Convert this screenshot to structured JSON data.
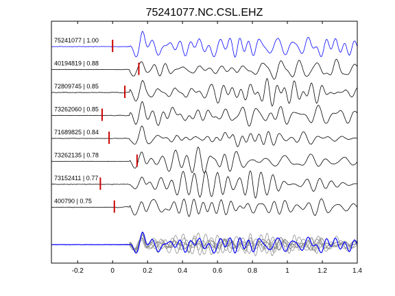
{
  "chart_data": {
    "type": "line",
    "title": "75241077.NC.CSL.EHZ",
    "xlabel": "",
    "ylabel": "",
    "xlim": [
      -0.35,
      1.4
    ],
    "x_ticks": [
      -0.2,
      0,
      0.2,
      0.4,
      0.6,
      0.8,
      1,
      1.2,
      1.4
    ],
    "x_tick_labels": [
      "-0.2",
      "0",
      "0.2",
      "0.4",
      "0.6",
      "0.8",
      "1",
      "1.2",
      "1.4"
    ],
    "grid": false,
    "colors": {
      "reference_trace": "#0000ff",
      "trace": "#000000",
      "pick_marker": "#cc0000",
      "overlay_trace": "#808080"
    },
    "traces": [
      {
        "label": "75241077 | 1.00",
        "event_id": "75241077",
        "correlation": 1.0,
        "pick_time": 0.0
      },
      {
        "label": "40194819 | 0.88",
        "event_id": "40194819",
        "correlation": 0.88,
        "pick_time": 0.15
      },
      {
        "label": "72809745 | 0.85",
        "event_id": "72809745",
        "correlation": 0.85,
        "pick_time": 0.07
      },
      {
        "label": "73262060 | 0.85",
        "event_id": "73262060",
        "correlation": 0.85,
        "pick_time": -0.06
      },
      {
        "label": "71689825 | 0.84",
        "event_id": "71689825",
        "correlation": 0.84,
        "pick_time": -0.02
      },
      {
        "label": "73262135 | 0.78",
        "event_id": "73262135",
        "correlation": 0.78,
        "pick_time": 0.14
      },
      {
        "label": "73152411 | 0.77",
        "event_id": "73152411",
        "correlation": 0.77,
        "pick_time": -0.07
      },
      {
        "label": "400790 | 0.75",
        "event_id": "400790",
        "correlation": 0.75,
        "pick_time": 0.01
      }
    ],
    "overlay": {
      "description": "stack of all traces aligned",
      "reference_color": "#0000ff"
    }
  }
}
